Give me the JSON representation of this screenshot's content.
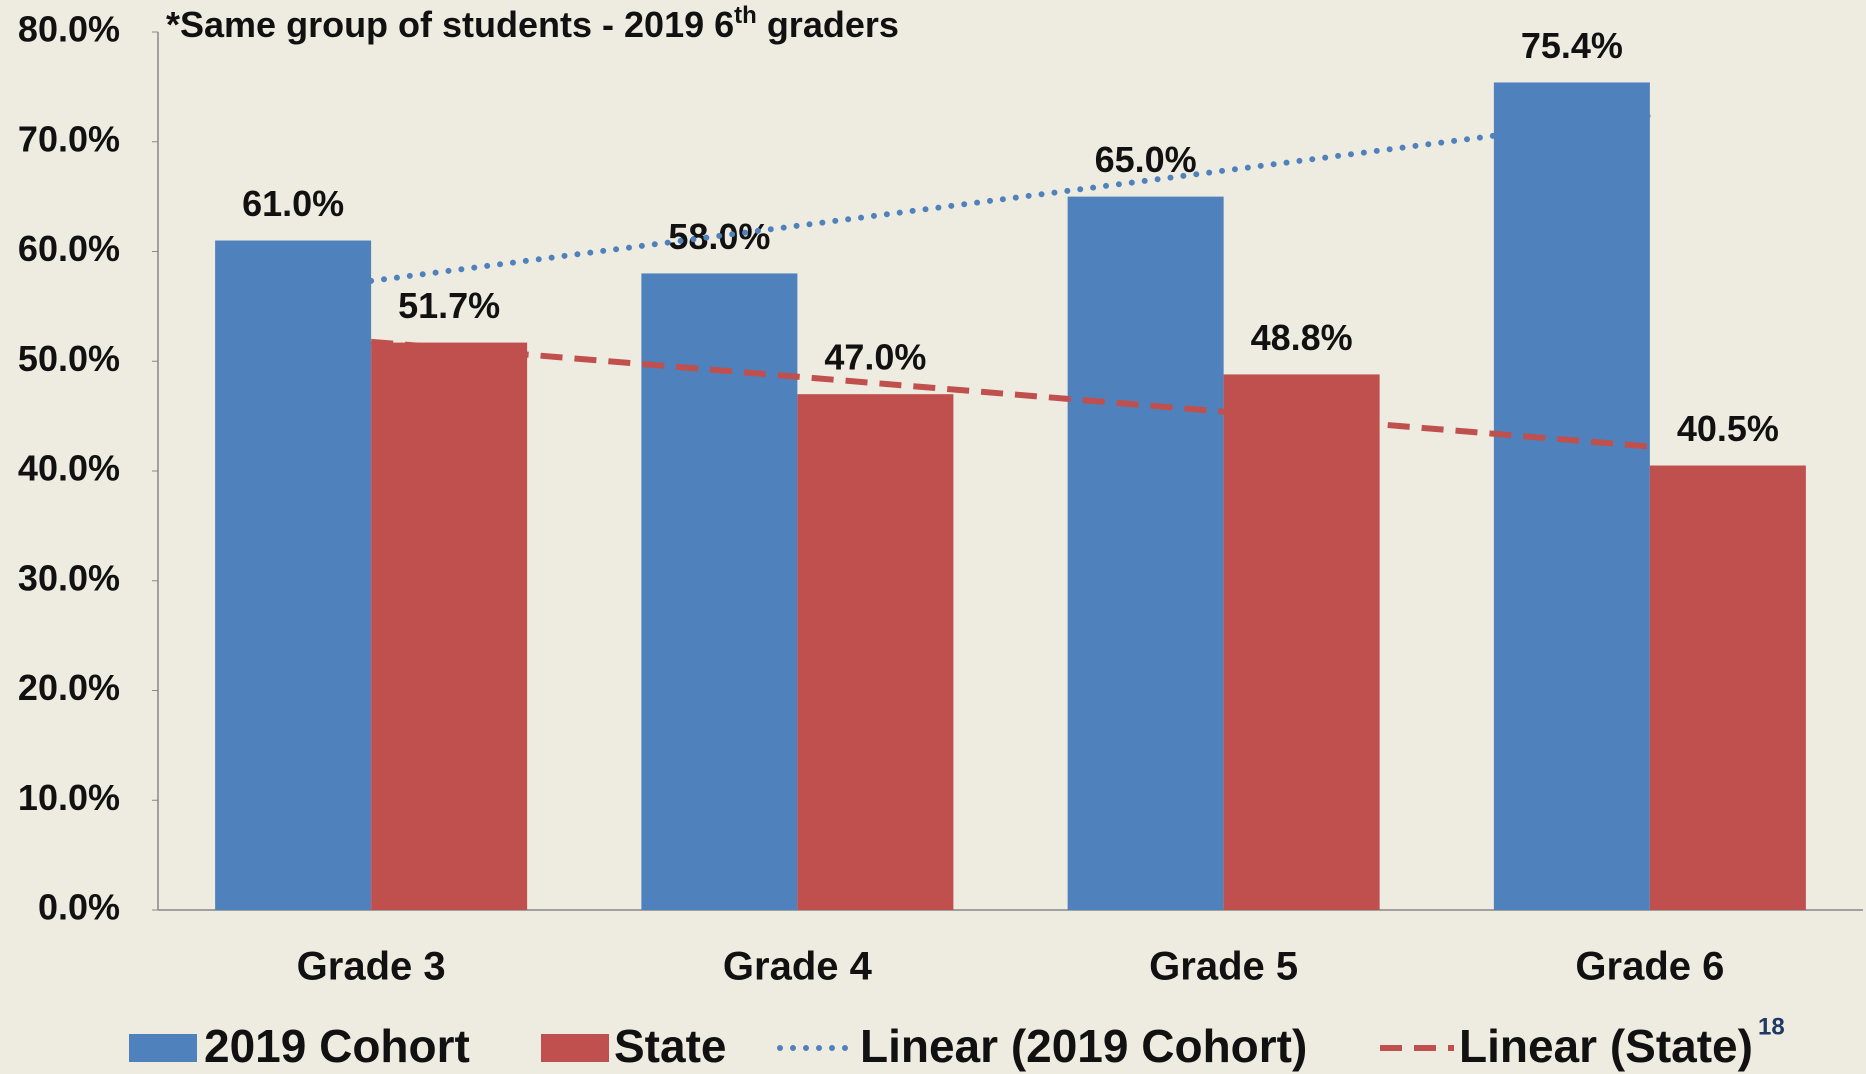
{
  "chart_data": {
    "type": "bar",
    "annotation": [
      "*Same group of students - 2019 6",
      "th",
      " graders"
    ],
    "page_number": "18",
    "categories": [
      "Grade 3",
      "Grade 4",
      "Grade 5",
      "Grade 6"
    ],
    "series": [
      {
        "name": "2019 Cohort",
        "color": "#4f81bd",
        "values": [
          61.0,
          58.0,
          65.0,
          75.4
        ],
        "value_labels": [
          "61.0%",
          "58.0%",
          "65.0%",
          "75.4%"
        ]
      },
      {
        "name": "State",
        "color": "#c0504d",
        "values": [
          51.7,
          47.0,
          48.8,
          40.5
        ],
        "value_labels": [
          "51.7%",
          "47.0%",
          "48.8%",
          "40.5%"
        ]
      }
    ],
    "trendlines": [
      {
        "name": "Linear (2019 Cohort)",
        "series": 0,
        "color": "#4f81bd",
        "style": "dotted"
      },
      {
        "name": "Linear (State)",
        "series": 1,
        "color": "#c0504d",
        "style": "dashed"
      }
    ],
    "ylim": [
      0,
      80
    ],
    "yticks": [
      {
        "value": 0,
        "label": "0.0%"
      },
      {
        "value": 10,
        "label": "10.0%"
      },
      {
        "value": 20,
        "label": "20.0%"
      },
      {
        "value": 30,
        "label": "30.0%"
      },
      {
        "value": 40,
        "label": "40.0%"
      },
      {
        "value": 50,
        "label": "50.0%"
      },
      {
        "value": 60,
        "label": "60.0%"
      },
      {
        "value": 70,
        "label": "70.0%"
      },
      {
        "value": 80,
        "label": "80.0%"
      }
    ],
    "grid": false,
    "legend": "bottom"
  }
}
